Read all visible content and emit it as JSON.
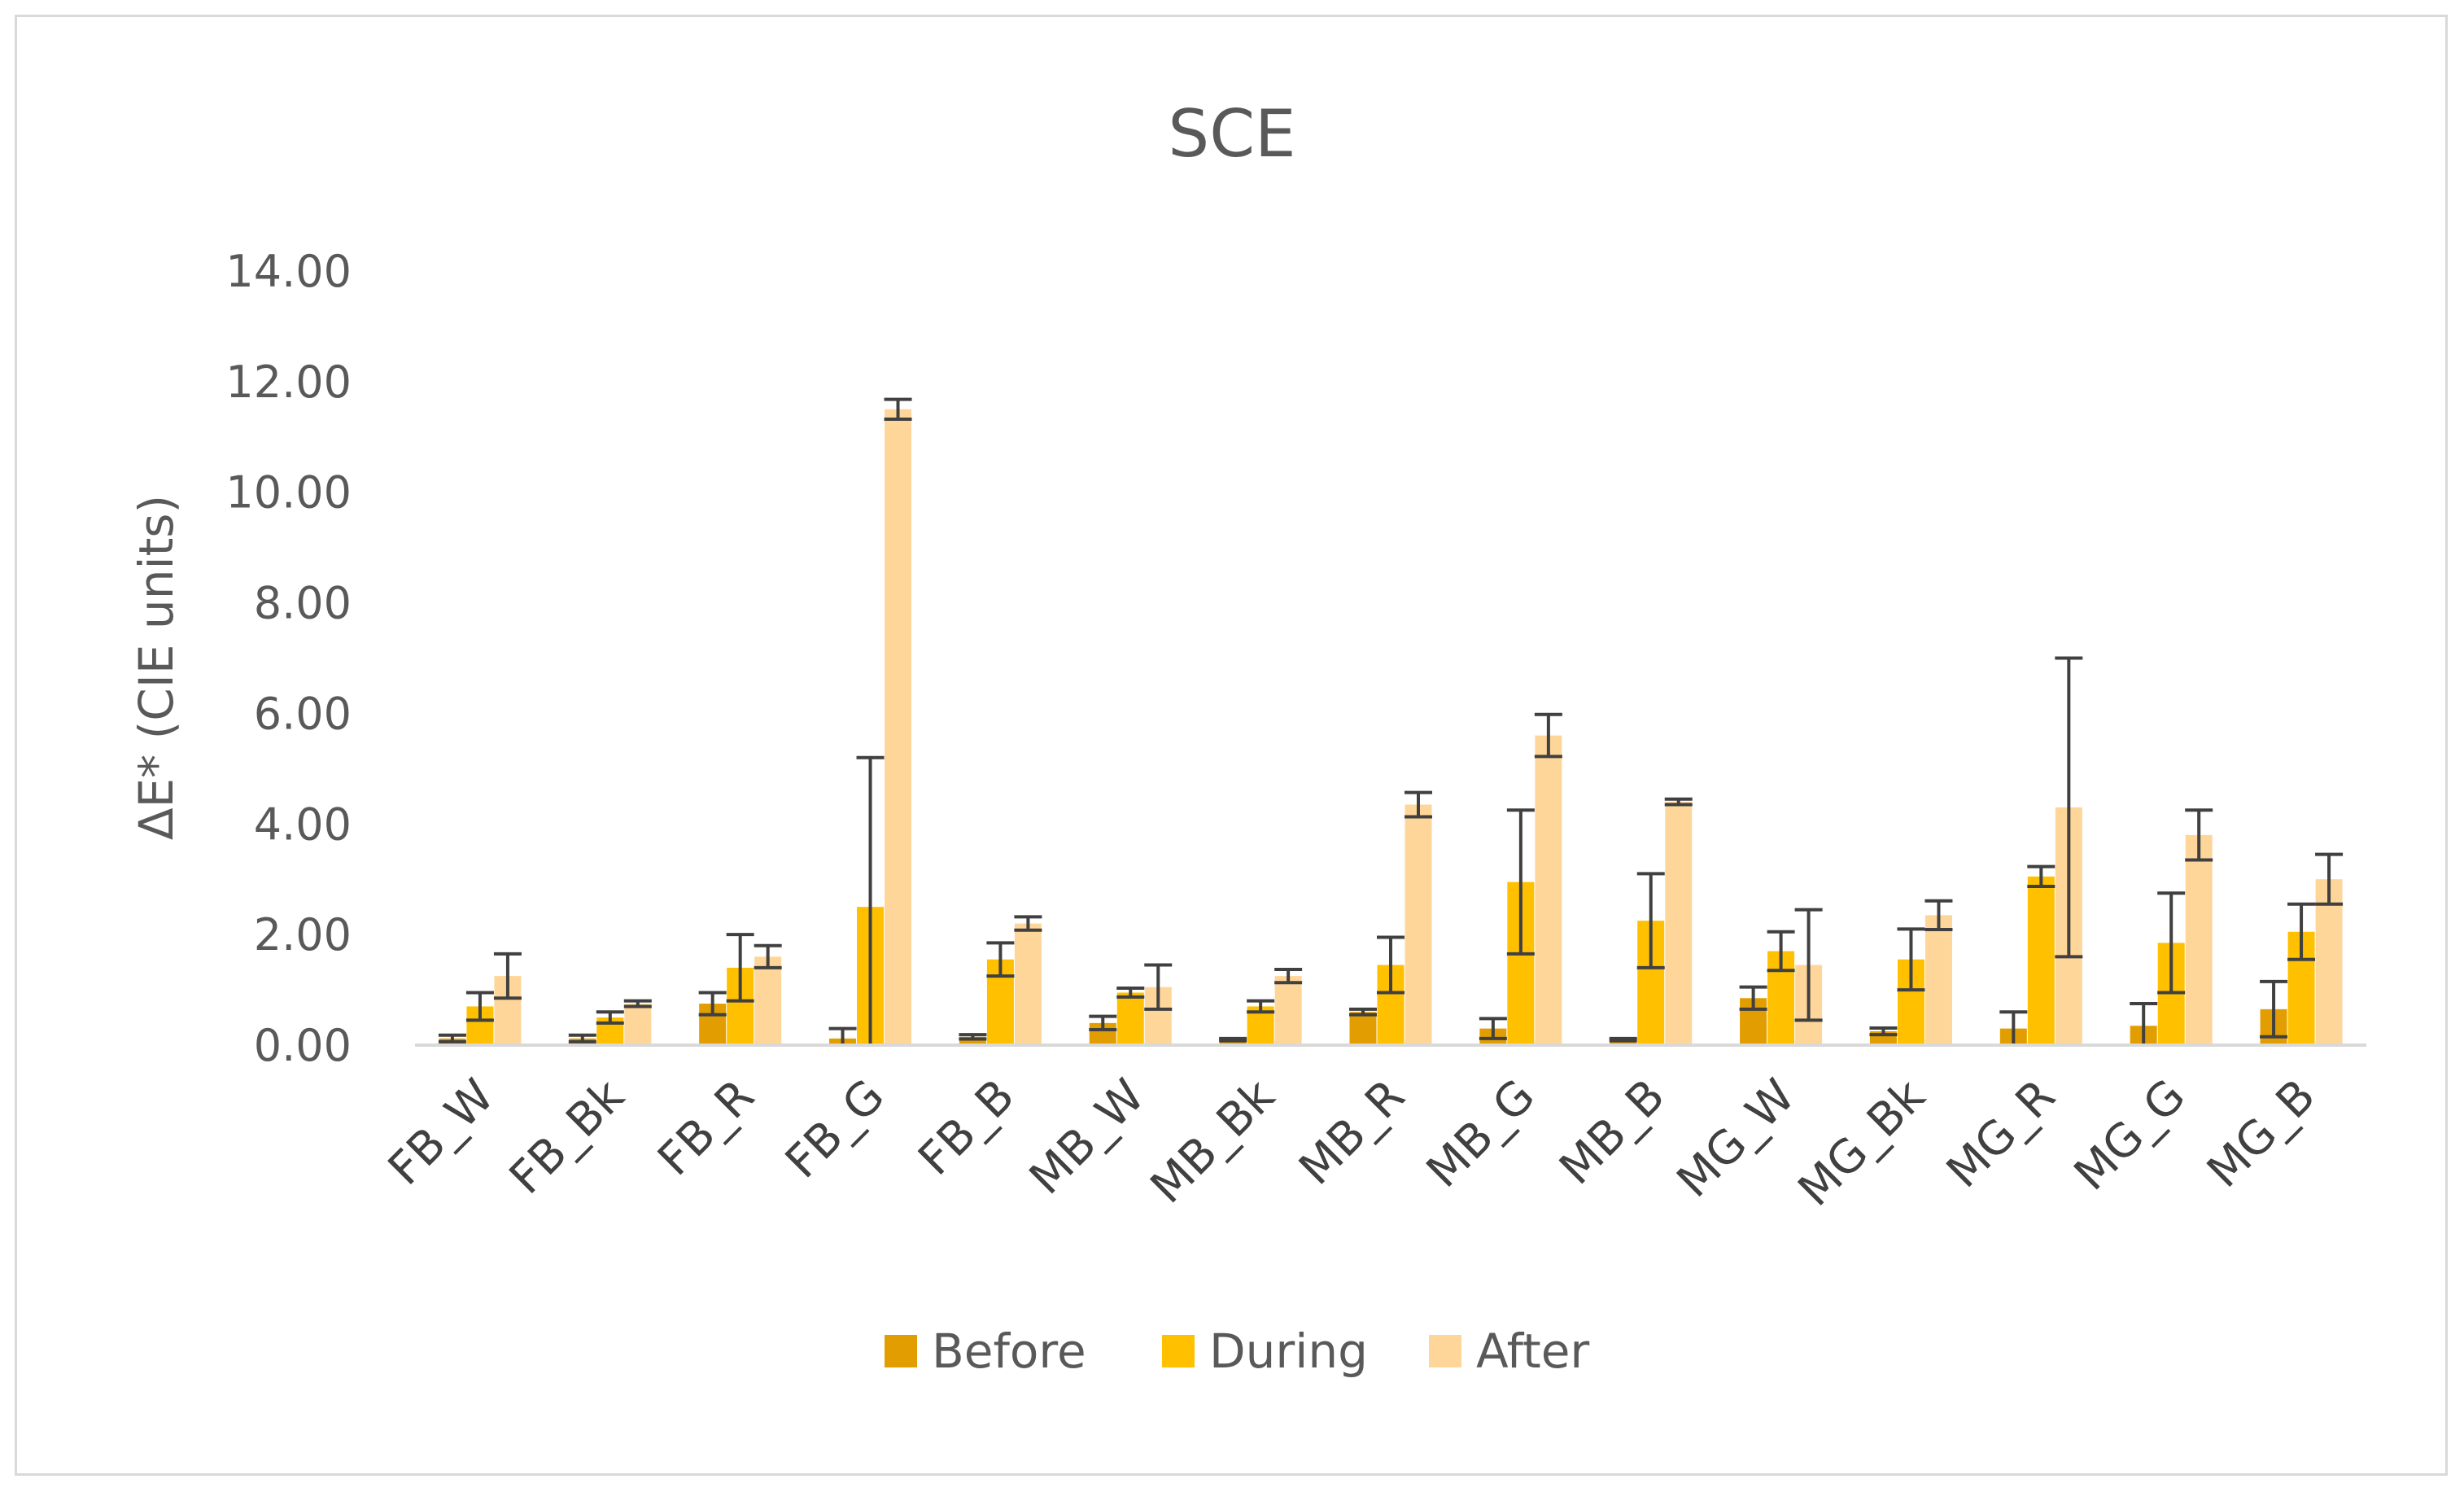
{
  "chart_data": {
    "type": "bar",
    "title": "SCE",
    "xlabel": "",
    "ylabel": "ΔE* (CIE units)",
    "ylim": [
      0,
      14
    ],
    "yticks": [
      "0.00",
      "2.00",
      "4.00",
      "6.00",
      "8.00",
      "10.00",
      "12.00",
      "14.00"
    ],
    "ytick_values": [
      0,
      2,
      4,
      6,
      8,
      10,
      12,
      14
    ],
    "grid": false,
    "legend_position": "bottom",
    "categories": [
      "FB_W",
      "FB_Bk",
      "FB_R",
      "FB_G",
      "FB_B",
      "MB_W",
      "MB_Bk",
      "MB_R",
      "MB_G",
      "MB_B",
      "MG_W",
      "MG_Bk",
      "MG_R",
      "MG_G",
      "MG_B"
    ],
    "series": [
      {
        "name": "Before",
        "color": "#E29E00",
        "values": [
          0.12,
          0.12,
          0.75,
          0.12,
          0.15,
          0.4,
          0.1,
          0.6,
          0.3,
          0.1,
          0.85,
          0.25,
          0.3,
          0.35,
          0.65
        ],
        "errors": [
          0.06,
          0.06,
          0.2,
          0.18,
          0.04,
          0.12,
          0.02,
          0.05,
          0.18,
          0.02,
          0.2,
          0.06,
          0.3,
          0.4,
          0.5
        ]
      },
      {
        "name": "During",
        "color": "#FFC000",
        "values": [
          0.7,
          0.5,
          1.4,
          2.5,
          1.55,
          0.95,
          0.7,
          1.45,
          2.95,
          2.25,
          1.7,
          1.55,
          3.05,
          1.85,
          2.05
        ],
        "errors": [
          0.25,
          0.1,
          0.6,
          2.7,
          0.3,
          0.08,
          0.1,
          0.5,
          1.3,
          0.85,
          0.35,
          0.55,
          0.18,
          0.9,
          0.5
        ]
      },
      {
        "name": "After",
        "color": "#FFD699",
        "values": [
          1.25,
          0.75,
          1.6,
          11.5,
          2.2,
          1.05,
          1.25,
          4.35,
          5.6,
          4.4,
          1.45,
          2.35,
          4.3,
          3.8,
          3.0
        ],
        "errors": [
          0.4,
          0.05,
          0.2,
          0.18,
          0.12,
          0.4,
          0.12,
          0.22,
          0.38,
          0.05,
          1.0,
          0.26,
          2.7,
          0.45,
          0.45
        ]
      }
    ]
  }
}
